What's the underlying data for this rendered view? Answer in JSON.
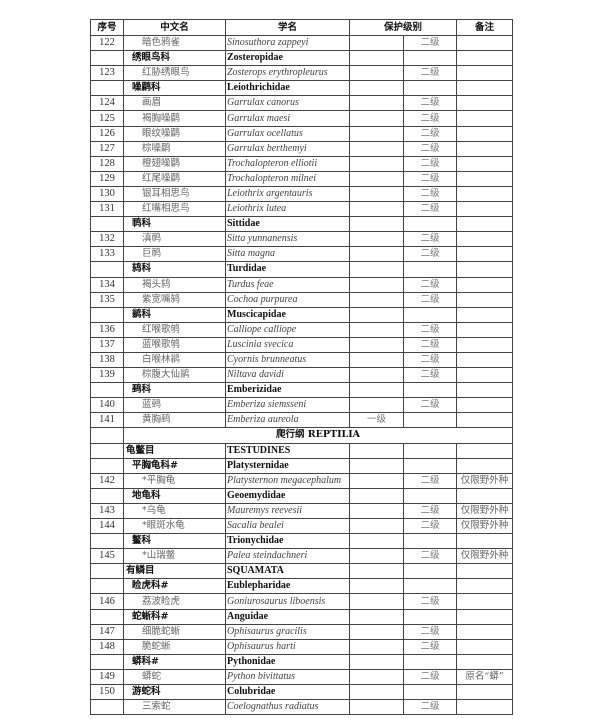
{
  "headers": [
    "序号",
    "中文名",
    "学名",
    "保护级别",
    "备注"
  ],
  "rows": [
    {
      "type": "sp",
      "no": "122",
      "cn": "暗色鸦雀",
      "sci": "Sinosuthora zappeyi",
      "l1": "",
      "l2": "二级",
      "note": ""
    },
    {
      "type": "fam",
      "cn": "绣眼鸟科",
      "sci": "Zosteropidae"
    },
    {
      "type": "sp",
      "no": "123",
      "cn": "红胁绣眼鸟",
      "sci": "Zosterops erythropleurus",
      "l1": "",
      "l2": "二级",
      "note": ""
    },
    {
      "type": "fam",
      "cn": "噪鹛科",
      "sci": "Leiothrichidae"
    },
    {
      "type": "sp",
      "no": "124",
      "cn": "画眉",
      "sci": "Garrulax canorus",
      "l1": "",
      "l2": "二级",
      "note": ""
    },
    {
      "type": "sp",
      "no": "125",
      "cn": "褐胸噪鹛",
      "sci": "Garrulax maesi",
      "l1": "",
      "l2": "二级",
      "note": ""
    },
    {
      "type": "sp",
      "no": "126",
      "cn": "眼纹噪鹛",
      "sci": "Garrulax ocellatus",
      "l1": "",
      "l2": "二级",
      "note": ""
    },
    {
      "type": "sp",
      "no": "127",
      "cn": "棕噪鹛",
      "sci": "Garrulax berthemyi",
      "l1": "",
      "l2": "二级",
      "note": ""
    },
    {
      "type": "sp",
      "no": "128",
      "cn": "橙翅噪鹛",
      "sci": "Trochalopteron elliotii",
      "l1": "",
      "l2": "二级",
      "note": ""
    },
    {
      "type": "sp",
      "no": "129",
      "cn": "红尾噪鹛",
      "sci": "Trochalopteron milnei",
      "l1": "",
      "l2": "二级",
      "note": ""
    },
    {
      "type": "sp",
      "no": "130",
      "cn": "银耳相思鸟",
      "sci": "Leiothrix argentauris",
      "l1": "",
      "l2": "二级",
      "note": ""
    },
    {
      "type": "sp",
      "no": "131",
      "cn": "红嘴相思鸟",
      "sci": "Leiothrix lutea",
      "l1": "",
      "l2": "二级",
      "note": ""
    },
    {
      "type": "fam",
      "cn": "䴓科",
      "sci": "Sittidae"
    },
    {
      "type": "sp",
      "no": "132",
      "cn": "滇䴓",
      "sci": "Sitta yunnanensis",
      "l1": "",
      "l2": "二级",
      "note": ""
    },
    {
      "type": "sp",
      "no": "133",
      "cn": "巨䴓",
      "sci": "Sitta magna",
      "l1": "",
      "l2": "二级",
      "note": ""
    },
    {
      "type": "fam",
      "cn": "鸫科",
      "sci": "Turdidae"
    },
    {
      "type": "sp",
      "no": "134",
      "cn": "褐头鸫",
      "sci": "Turdus feae",
      "l1": "",
      "l2": "二级",
      "note": ""
    },
    {
      "type": "sp",
      "no": "135",
      "cn": "紫宽嘴鸫",
      "sci": "Cochoa purpurea",
      "l1": "",
      "l2": "二级",
      "note": ""
    },
    {
      "type": "fam",
      "cn": "鹟科",
      "sci": "Muscicapidae"
    },
    {
      "type": "sp",
      "no": "136",
      "cn": "红喉歌鸲",
      "sci": "Calliope calliope",
      "l1": "",
      "l2": "二级",
      "note": ""
    },
    {
      "type": "sp",
      "no": "137",
      "cn": "蓝喉歌鸲",
      "sci": "Luscinia svecica",
      "l1": "",
      "l2": "二级",
      "note": ""
    },
    {
      "type": "sp",
      "no": "138",
      "cn": "白喉林鹟",
      "sci": "Cyornis brunneatus",
      "l1": "",
      "l2": "二级",
      "note": ""
    },
    {
      "type": "sp",
      "no": "139",
      "cn": "棕腹大仙鹟",
      "sci": "Niltava davidi",
      "l1": "",
      "l2": "二级",
      "note": ""
    },
    {
      "type": "fam",
      "cn": "鹀科",
      "sci": "Emberizidae"
    },
    {
      "type": "sp",
      "no": "140",
      "cn": "蓝鹀",
      "sci": "Emberiza siemsseni",
      "l1": "",
      "l2": "二级",
      "note": ""
    },
    {
      "type": "sp",
      "no": "141",
      "cn": "黄胸鹀",
      "sci": "Emberiza aureola",
      "l1": "一级",
      "l2": "",
      "note": ""
    },
    {
      "type": "class",
      "label": "爬行纲 REPTILIA"
    },
    {
      "type": "ord",
      "cn": "龟鳖目",
      "sci": "TESTUDINES"
    },
    {
      "type": "fam",
      "cn": "平胸龟科#",
      "sci": "Platysternidae"
    },
    {
      "type": "sp",
      "no": "142",
      "cn": "*平胸龟",
      "sci": "Platysternon megacephalum",
      "l1": "",
      "l2": "二级",
      "note": "仅限野外种"
    },
    {
      "type": "fam",
      "cn": "地龟科",
      "sci": "Geoemydidae"
    },
    {
      "type": "sp",
      "no": "143",
      "cn": "*乌龟",
      "sci": "Mauremys reevesii",
      "l1": "",
      "l2": "二级",
      "note": "仅限野外种"
    },
    {
      "type": "sp",
      "no": "144",
      "cn": "*眼斑水龟",
      "sci": "Sacalia bealei",
      "l1": "",
      "l2": "二级",
      "note": "仅限野外种"
    },
    {
      "type": "fam",
      "cn": "鳖科",
      "sci": "Trionychidae"
    },
    {
      "type": "sp",
      "no": "145",
      "cn": "*山瑞鳖",
      "sci": "Palea steindachneri",
      "l1": "",
      "l2": "二级",
      "note": "仅限野外种"
    },
    {
      "type": "ord",
      "cn": "有鳞目",
      "sci": "SQUAMATA"
    },
    {
      "type": "fam",
      "cn": "睑虎科#",
      "sci": "Eublepharidae"
    },
    {
      "type": "sp",
      "no": "146",
      "cn": "荔波睑虎",
      "sci": "Goniurosaurus liboensis",
      "l1": "",
      "l2": "二级",
      "note": ""
    },
    {
      "type": "fam",
      "cn": "蛇蜥科#",
      "sci": "Anguidae"
    },
    {
      "type": "sp",
      "no": "147",
      "cn": "细脆蛇蜥",
      "sci": "Ophisaurus gracilis",
      "l1": "",
      "l2": "二级",
      "note": ""
    },
    {
      "type": "sp",
      "no": "148",
      "cn": "脆蛇蜥",
      "sci": "Ophisaurus harti",
      "l1": "",
      "l2": "二级",
      "note": ""
    },
    {
      "type": "fam",
      "cn": "蟒科#",
      "sci": "Pythonidae"
    },
    {
      "type": "sp",
      "no": "149",
      "cn": "蟒蛇",
      "sci": "Python bivittatus",
      "l1": "",
      "l2": "二级",
      "note": "原名“蟒”"
    },
    {
      "type": "fam",
      "no": "150",
      "cn": "游蛇科",
      "sci": "Colubridae"
    },
    {
      "type": "sp",
      "no": "",
      "cn": "三索蛇",
      "sci": "Coelognathus radiatus",
      "l1": "",
      "l2": "二级",
      "note": ""
    }
  ]
}
